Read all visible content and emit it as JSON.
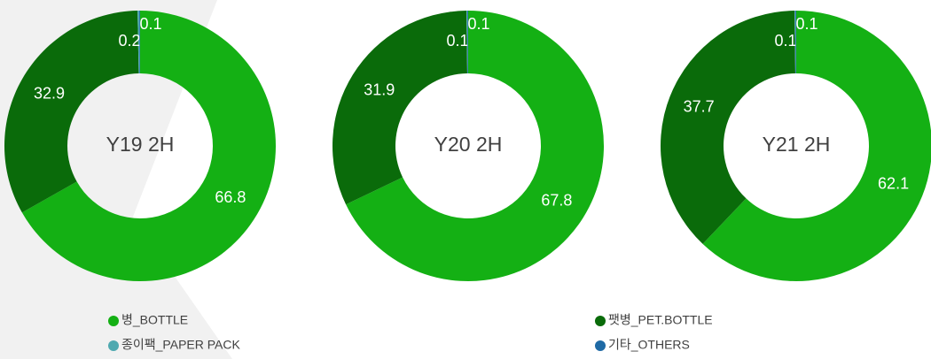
{
  "chart_data": [
    {
      "type": "pie",
      "title": "Y19 2H",
      "categories": [
        "병_BOTTLE",
        "팻병_PET.BOTTLE",
        "종이팩_PAPER PACK",
        "기타_OTHERS"
      ],
      "values": [
        66.8,
        32.9,
        0.2,
        0.1
      ],
      "colors": [
        "#14b014",
        "#0a6b0a",
        "#4fa9b0",
        "#1f6aa5"
      ]
    },
    {
      "type": "pie",
      "title": "Y20 2H",
      "categories": [
        "병_BOTTLE",
        "팻병_PET.BOTTLE",
        "종이팩_PAPER PACK",
        "기타_OTHERS"
      ],
      "values": [
        67.8,
        31.9,
        0.1,
        0.1
      ],
      "colors": [
        "#14b014",
        "#0a6b0a",
        "#4fa9b0",
        "#1f6aa5"
      ]
    },
    {
      "type": "pie",
      "title": "Y21 2H",
      "categories": [
        "병_BOTTLE",
        "팻병_PET.BOTTLE",
        "종이팩_PAPER PACK",
        "기타_OTHERS"
      ],
      "values": [
        62.1,
        37.7,
        0.1,
        0.1
      ],
      "colors": [
        "#14b014",
        "#0a6b0a",
        "#4fa9b0",
        "#1f6aa5"
      ]
    }
  ]
}
